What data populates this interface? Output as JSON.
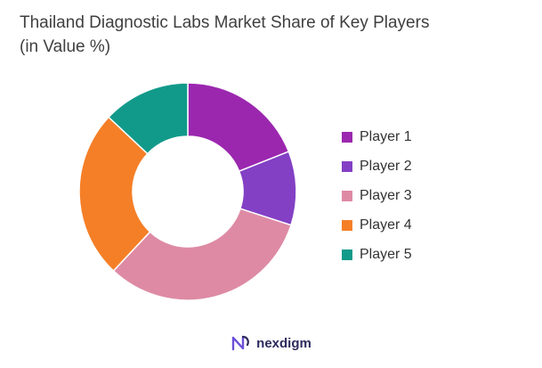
{
  "chart_data": {
    "type": "pie",
    "title": "Thailand Diagnostic Labs Market Share of Key Players (in Value %)",
    "categories": [
      "Player 1",
      "Player 2",
      "Player 3",
      "Player 4",
      "Player 5"
    ],
    "values": [
      19,
      11,
      32,
      25,
      13
    ],
    "colors": [
      "#9b27af",
      "#8340c4",
      "#de8aa5",
      "#f57f27",
      "#119a8a"
    ],
    "legend": "right",
    "donut": true
  },
  "brand": {
    "name": "nexdigm",
    "logo_icon": "nexdigm-logo-icon"
  }
}
